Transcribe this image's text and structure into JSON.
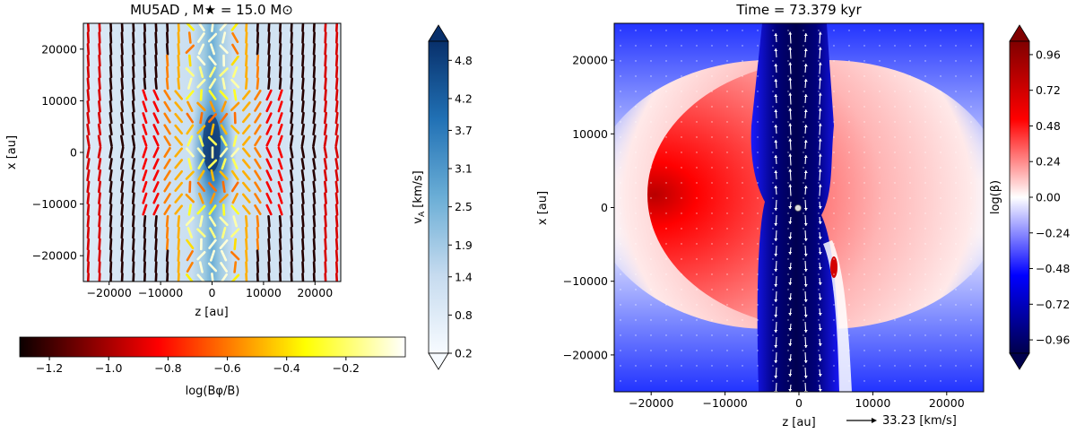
{
  "chart_data": [
    {
      "type": "heatmap",
      "title": "MU5AD , M★ = 15.0 M⊙",
      "xlabel": "z [au]",
      "ylabel": "x [au]",
      "xlim": [
        -25000,
        25000
      ],
      "ylim": [
        -25000,
        25000
      ],
      "xticks": [
        "−20000",
        "−10000",
        "0",
        "10000",
        "20000"
      ],
      "xtick_values": [
        -20000,
        -10000,
        0,
        10000,
        20000
      ],
      "yticks": [
        "20000",
        "10000",
        "0",
        "−10000",
        "−20000"
      ],
      "ytick_values": [
        20000,
        10000,
        0,
        -10000,
        -20000
      ],
      "overlay": "magnetic field direction segments colored by log(Bφ/B)",
      "colorbars": [
        {
          "label": "v_A [km/s]",
          "orientation": "vertical",
          "colormap": "Blues",
          "range": [
            0.2,
            5.1
          ],
          "extend": "both",
          "ticks": [
            "4.8",
            "4.2",
            "3.7",
            "3.1",
            "2.5",
            "1.9",
            "1.4",
            "0.8",
            "0.2"
          ],
          "tick_values": [
            4.8,
            4.2,
            3.7,
            3.1,
            2.5,
            1.9,
            1.4,
            0.8,
            0.2
          ]
        },
        {
          "label": "log(Bφ/B)",
          "orientation": "horizontal",
          "colormap": "hot",
          "range": [
            -1.3,
            0.0
          ],
          "ticks": [
            "−1.2",
            "−1.0",
            "−0.8",
            "−0.6",
            "−0.4",
            "−0.2"
          ],
          "tick_values": [
            -1.2,
            -1.0,
            -0.8,
            -0.6,
            -0.4,
            -0.2
          ]
        }
      ]
    },
    {
      "type": "heatmap",
      "title": "Time = 73.379 kyr",
      "xlabel": "z [au]",
      "ylabel": "x [au]",
      "xlim": [
        -25000,
        25000
      ],
      "ylim": [
        -25000,
        25000
      ],
      "xticks": [
        "−20000",
        "−10000",
        "0",
        "10000",
        "20000"
      ],
      "xtick_values": [
        -20000,
        -10000,
        0,
        10000,
        20000
      ],
      "yticks": [
        "20000",
        "10000",
        "0",
        "−10000",
        "−20000"
      ],
      "ytick_values": [
        20000,
        10000,
        0,
        -10000,
        -20000
      ],
      "overlay": "velocity arrows",
      "arrow_key": "33.23 [km/s]",
      "colorbars": [
        {
          "label": "log(β)",
          "orientation": "vertical",
          "colormap": "seismic",
          "range": [
            -1.05,
            1.05
          ],
          "extend": "both",
          "ticks": [
            "0.96",
            "0.72",
            "0.48",
            "0.24",
            "0.00",
            "−0.24",
            "−0.48",
            "−0.72",
            "−0.96"
          ],
          "tick_values": [
            0.96,
            0.72,
            0.48,
            0.24,
            0.0,
            -0.24,
            -0.48,
            -0.72,
            -0.96
          ]
        }
      ]
    }
  ]
}
